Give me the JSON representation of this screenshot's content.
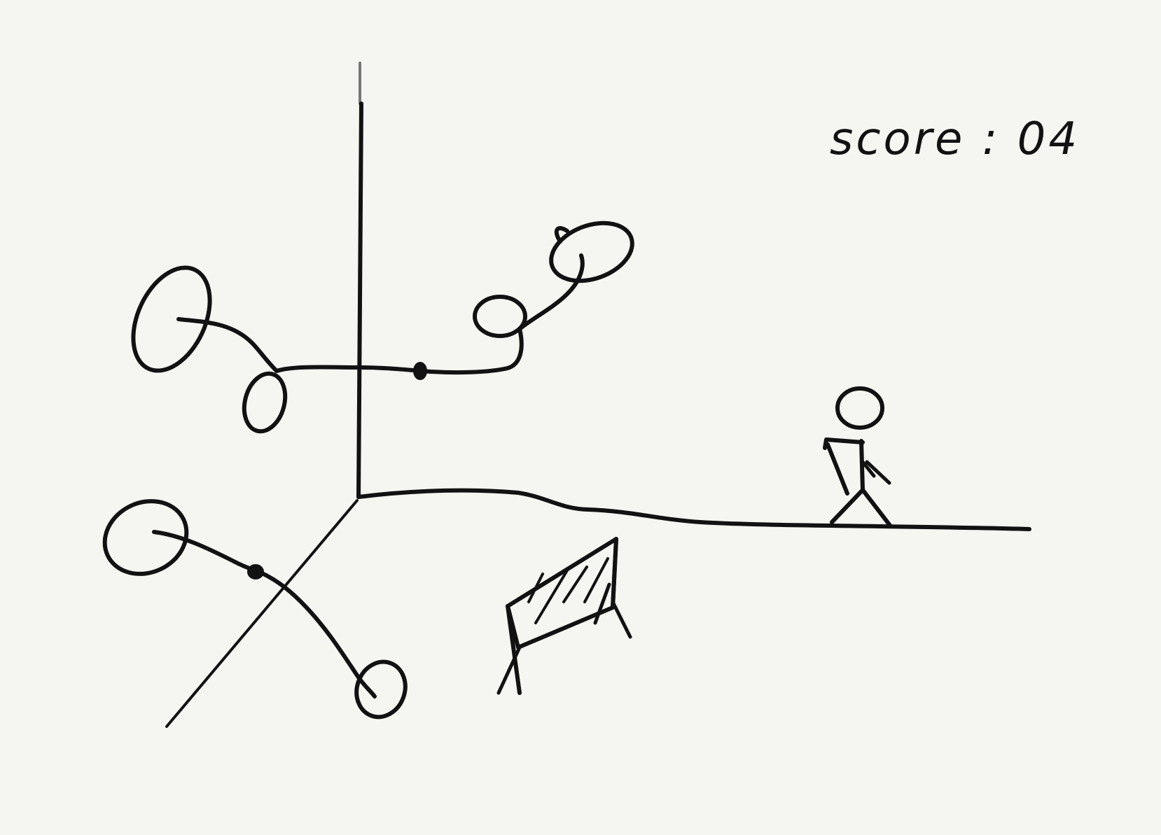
{
  "hud": {
    "score_text": "score : 04"
  },
  "colors": {
    "background": "#f5f5f1",
    "ink": "#121212"
  },
  "icons": {
    "player": "stick-figure-runner",
    "obstacle": "hurdle-barrier"
  }
}
